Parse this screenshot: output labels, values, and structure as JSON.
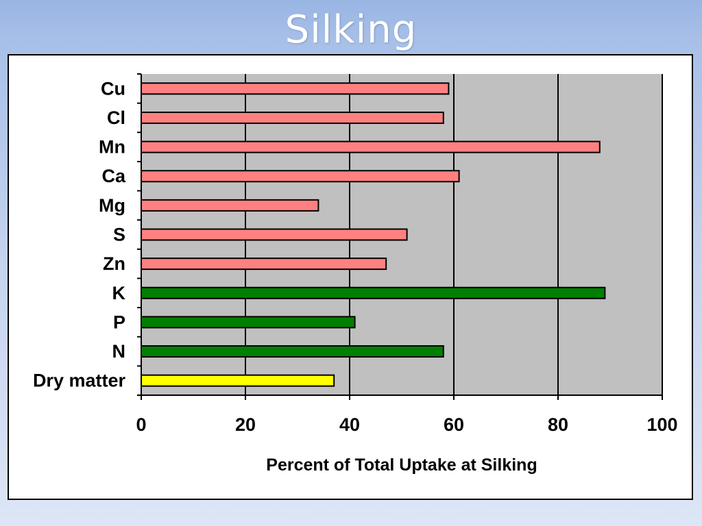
{
  "slide": {
    "title": "Silking"
  },
  "colors": {
    "background_top": "#99b5e3",
    "panel": "#ffffff",
    "plot_area": "#c0c0c0",
    "micronutrient_bars": "#ff8080",
    "macronutrient_bars": "#008000",
    "dry_matter_bar": "#ffff00",
    "bar_outline": "#000000"
  },
  "chart_data": {
    "type": "bar",
    "orientation": "horizontal",
    "title": "",
    "xlabel": "Percent of Total Uptake at Silking",
    "ylabel": "",
    "xlim": [
      0,
      100
    ],
    "x_ticks": [
      "0",
      "20",
      "40",
      "60",
      "80",
      "100"
    ],
    "grid": "vertical",
    "legend": "none",
    "categories": [
      "Cu",
      "Cl",
      "Mn",
      "Ca",
      "Mg",
      "S",
      "Zn",
      "K",
      "P",
      "N",
      "Dry matter"
    ],
    "values": [
      59,
      58,
      88,
      61,
      34,
      51,
      47,
      89,
      41,
      58,
      37
    ],
    "bar_colors": [
      "#ff8080",
      "#ff8080",
      "#ff8080",
      "#ff8080",
      "#ff8080",
      "#ff8080",
      "#ff8080",
      "#008000",
      "#008000",
      "#008000",
      "#ffff00"
    ]
  }
}
